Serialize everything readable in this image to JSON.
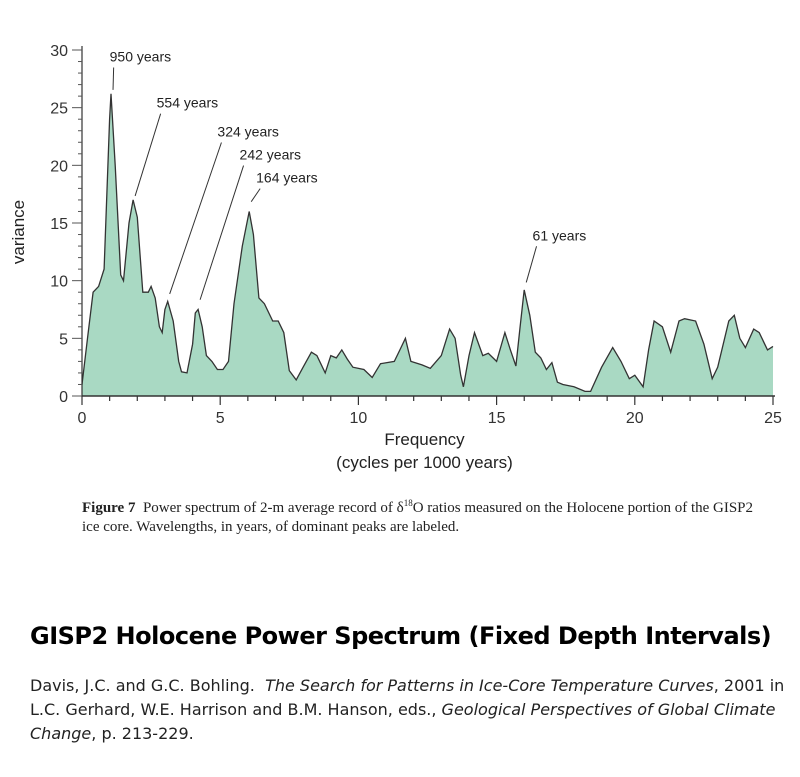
{
  "chart_data": {
    "type": "area",
    "title": "",
    "xlabel": "Frequency",
    "xlabel2": "(cycles per 1000 years)",
    "ylabel": "variance",
    "xlim": [
      0,
      25
    ],
    "ylim": [
      0,
      30
    ],
    "xticks": [
      "0",
      "5",
      "10",
      "15",
      "20",
      "25"
    ],
    "yticks": [
      "0",
      "5",
      "10",
      "15",
      "20",
      "25",
      "30"
    ],
    "fill_color": "#a9d9c3",
    "line_color": "#333333",
    "x": [
      0,
      0.2,
      0.4,
      0.6,
      0.8,
      1.0,
      1.05,
      1.2,
      1.4,
      1.5,
      1.7,
      1.85,
      2.0,
      2.2,
      2.4,
      2.5,
      2.65,
      2.8,
      2.9,
      3.0,
      3.1,
      3.3,
      3.5,
      3.6,
      3.8,
      4.0,
      4.1,
      4.2,
      4.35,
      4.5,
      4.7,
      4.9,
      5.1,
      5.3,
      5.5,
      5.8,
      6.05,
      6.2,
      6.4,
      6.6,
      6.9,
      7.1,
      7.3,
      7.5,
      7.75,
      8.0,
      8.3,
      8.5,
      8.8,
      9.0,
      9.2,
      9.4,
      9.6,
      9.8,
      10.2,
      10.5,
      10.8,
      11.3,
      11.5,
      11.7,
      11.9,
      12.3,
      12.6,
      13.0,
      13.3,
      13.5,
      13.7,
      13.8,
      14.0,
      14.2,
      14.5,
      14.7,
      15.0,
      15.3,
      15.5,
      15.7,
      15.85,
      16.0,
      16.2,
      16.4,
      16.6,
      16.8,
      17.0,
      17.2,
      17.4,
      17.8,
      18.2,
      18.4,
      18.8,
      19.2,
      19.5,
      19.8,
      20.0,
      20.3,
      20.5,
      20.7,
      21.0,
      21.3,
      21.6,
      21.8,
      22.2,
      22.5,
      22.8,
      23.0,
      23.4,
      23.6,
      23.8,
      24.0,
      24.3,
      24.5,
      24.8,
      25.0
    ],
    "y": [
      1,
      5,
      9,
      9.5,
      11,
      24,
      26.2,
      20,
      10.5,
      10,
      15,
      17,
      15.5,
      9,
      9,
      9.5,
      8.5,
      6,
      5.5,
      7.5,
      8.2,
      6.5,
      3,
      2.1,
      2,
      4.5,
      7.2,
      7.5,
      6,
      3.5,
      3,
      2.3,
      2.3,
      3,
      8,
      13,
      16,
      14,
      8.5,
      8,
      6.5,
      6.5,
      5.5,
      2.2,
      1.4,
      2.5,
      3.8,
      3.5,
      2,
      3.5,
      3.3,
      4,
      3.2,
      2.5,
      2.3,
      1.6,
      2.8,
      3,
      4,
      5,
      3,
      2.7,
      2.4,
      3.5,
      5.8,
      5,
      1.8,
      0.8,
      3.5,
      5.5,
      3.5,
      3.7,
      3,
      5.5,
      4,
      2.6,
      6,
      9.2,
      7,
      3.8,
      3.3,
      2.3,
      2.9,
      1.2,
      1,
      0.8,
      0.4,
      0.4,
      2.5,
      4.2,
      3,
      1.5,
      1.8,
      0.8,
      4,
      6.5,
      6,
      3.8,
      6.5,
      6.7,
      6.5,
      4.5,
      1.5,
      2.5,
      6.5,
      7,
      5,
      4.2,
      5.8,
      5.5,
      4,
      4.3
    ],
    "annotations": [
      {
        "text": "950 years",
        "x": 1.05,
        "y": 26.2,
        "label_x": 1.0,
        "label_y": 29
      },
      {
        "text": "554 years",
        "x": 1.85,
        "y": 17,
        "label_x": 2.7,
        "label_y": 25
      },
      {
        "text": "324 years",
        "x": 3.1,
        "y": 8.5,
        "label_x": 4.9,
        "label_y": 22.5
      },
      {
        "text": "242 years",
        "x": 4.2,
        "y": 8,
        "label_x": 5.7,
        "label_y": 20.5
      },
      {
        "text": "164 years",
        "x": 6.05,
        "y": 16.5,
        "label_x": 6.3,
        "label_y": 18.5
      },
      {
        "text": "61 years",
        "x": 16.0,
        "y": 9.5,
        "label_x": 16.3,
        "label_y": 13.5
      }
    ]
  },
  "caption": {
    "label": "Figure 7",
    "text_before": "Power spectrum of 2-m average record of δ",
    "superscript": "18",
    "text_after": "O ratios measured on the Holocene portion of the GISP2 ice core. Wavelengths, in years, of dominant peaks are labeled."
  },
  "slide_title": "GISP2 Holocene Power Spectrum (Fixed Depth Intervals)",
  "citation": {
    "authors": "Davis, J.C. and G.C. Bohling.",
    "work": "The Search for Patterns in Ice-Core Temperature Curves",
    "middle": ", 2001 in L.C. Gerhard, W.E. Harrison and B.M. Hanson, eds., ",
    "book": "Geological Perspectives of Global Climate Change",
    "pages": ", p. 213-229."
  }
}
